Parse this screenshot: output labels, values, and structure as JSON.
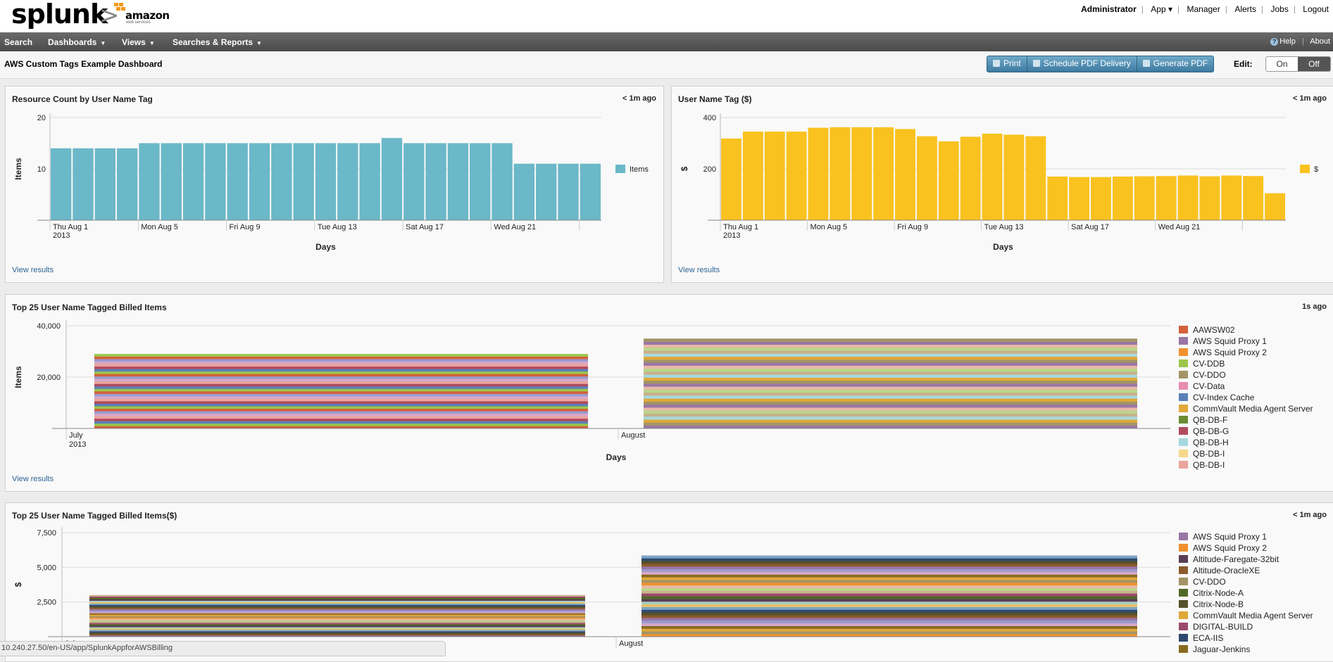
{
  "header": {
    "logo_text": "splunk",
    "partner_logo": "amazon web services",
    "user_nav": [
      "Administrator",
      "App ▾",
      "Manager",
      "Alerts",
      "Jobs",
      "Logout"
    ]
  },
  "nav": {
    "items": [
      {
        "label": "Search",
        "dropdown": false
      },
      {
        "label": "Dashboards",
        "dropdown": true
      },
      {
        "label": "Views",
        "dropdown": true
      },
      {
        "label": "Searches & Reports",
        "dropdown": true
      }
    ],
    "help_label": "Help",
    "about_label": "About"
  },
  "dashboard": {
    "title": "AWS Custom Tags Example Dashboard",
    "buttons": {
      "print": "Print",
      "schedule": "Schedule PDF Delivery",
      "generate": "Generate PDF"
    },
    "edit_label": "Edit:",
    "edit_on": "On",
    "edit_off": "Off"
  },
  "panels": {
    "p1": {
      "title": "Resource Count by User Name Tag",
      "time": "< 1m ago",
      "view": "View results"
    },
    "p2": {
      "title": "User Name Tag ($)",
      "time": "< 1m ago",
      "view": "View results"
    },
    "p3": {
      "title": "Top 25 User Name Tagged Billed Items",
      "time": "1s ago",
      "view": "View results"
    },
    "p4": {
      "title": "Top 25 User Name Tagged Billed Items($)",
      "time": "< 1m ago"
    }
  },
  "status_url": "10.240.27.50/en-US/app/SplunkAppforAWSBilling",
  "colors": {
    "teal": "#6ab8c8",
    "yellow": "#f9c21f",
    "link": "#2a6496"
  },
  "chart_data": [
    {
      "id": "c1",
      "type": "bar",
      "xlabel": "Days",
      "ylabel": "Items",
      "ylim": [
        0,
        20
      ],
      "yticks": [
        10,
        20
      ],
      "x_tick_labels": [
        "Thu Aug 1",
        "Mon Aug 5",
        "Fri Aug 9",
        "Tue Aug 13",
        "Sat Aug 17",
        "Wed Aug 21"
      ],
      "x_year_label": "2013",
      "legend": [
        "Items"
      ],
      "color": "#6ab8c8",
      "legend_placement": "right",
      "categories": [
        "Aug 1",
        "Aug 2",
        "Aug 3",
        "Aug 4",
        "Aug 5",
        "Aug 6",
        "Aug 7",
        "Aug 8",
        "Aug 9",
        "Aug 10",
        "Aug 11",
        "Aug 12",
        "Aug 13",
        "Aug 14",
        "Aug 15",
        "Aug 16",
        "Aug 17",
        "Aug 18",
        "Aug 19",
        "Aug 20",
        "Aug 21",
        "Aug 22",
        "Aug 23",
        "Aug 24",
        "Aug 25"
      ],
      "values": [
        14,
        14,
        14,
        14,
        15,
        15,
        15,
        15,
        15,
        15,
        15,
        15,
        15,
        15,
        15,
        16,
        15,
        15,
        15,
        15,
        15,
        11,
        11,
        11,
        11
      ]
    },
    {
      "id": "c2",
      "type": "bar",
      "xlabel": "Days",
      "ylabel": "$",
      "ylim": [
        0,
        400
      ],
      "yticks": [
        200,
        400
      ],
      "x_tick_labels": [
        "Thu Aug 1",
        "Mon Aug 5",
        "Fri Aug 9",
        "Tue Aug 13",
        "Sat Aug 17",
        "Wed Aug 21"
      ],
      "x_year_label": "2013",
      "legend": [
        "$"
      ],
      "color": "#f9c21f",
      "legend_placement": "right",
      "categories": [
        "Aug 1",
        "Aug 2",
        "Aug 3",
        "Aug 4",
        "Aug 5",
        "Aug 6",
        "Aug 7",
        "Aug 8",
        "Aug 9",
        "Aug 10",
        "Aug 11",
        "Aug 12",
        "Aug 13",
        "Aug 14",
        "Aug 15",
        "Aug 16",
        "Aug 17",
        "Aug 18",
        "Aug 19",
        "Aug 20",
        "Aug 21",
        "Aug 22",
        "Aug 23",
        "Aug 24",
        "Aug 25",
        "Aug 26"
      ],
      "values": [
        318,
        345,
        345,
        345,
        360,
        362,
        362,
        362,
        355,
        327,
        307,
        325,
        337,
        333,
        327,
        170,
        168,
        168,
        170,
        171,
        172,
        174,
        171,
        174,
        172,
        105
      ]
    },
    {
      "id": "c3",
      "type": "bar",
      "stacked": true,
      "xlabel": "Days",
      "ylabel": "Items",
      "ylim": [
        0,
        40000
      ],
      "yticks": [
        20000,
        40000
      ],
      "ytick_labels": [
        "20,000",
        "40,000"
      ],
      "categories": [
        "July 2013",
        "August"
      ],
      "x_tick_labels": [
        "July",
        "August"
      ],
      "x_year_label": "2013",
      "totals": [
        29000,
        35000
      ],
      "legend_placement": "right",
      "legend": [
        {
          "name": "AAWSW02",
          "color": "#d4603a"
        },
        {
          "name": "AWS Squid Proxy 1",
          "color": "#9a76a4"
        },
        {
          "name": "AWS Squid Proxy 2",
          "color": "#f0912e"
        },
        {
          "name": "CV-DDB",
          "color": "#9bc64a"
        },
        {
          "name": "CV-DDO",
          "color": "#a39466"
        },
        {
          "name": "CV-Data",
          "color": "#e88cb0"
        },
        {
          "name": "CV-Index Cache",
          "color": "#5b80b8"
        },
        {
          "name": "CommVault Media Agent Server",
          "color": "#e0a93a"
        },
        {
          "name": "QB-DB-F",
          "color": "#6b8c32"
        },
        {
          "name": "QB-DB-G",
          "color": "#b04a5e"
        },
        {
          "name": "QB-DB-H",
          "color": "#a6d8e0"
        },
        {
          "name": "QB-DB-I",
          "color": "#f6d88a"
        },
        {
          "name": "QB-DB-I",
          "color": "#eaa49c"
        }
      ]
    },
    {
      "id": "c4",
      "type": "bar",
      "stacked": true,
      "xlabel": "",
      "ylabel": "$",
      "ylim": [
        0,
        7500
      ],
      "yticks": [
        2500,
        5000,
        7500
      ],
      "ytick_labels": [
        "2,500",
        "5,000",
        "7,500"
      ],
      "categories": [
        "July",
        "August"
      ],
      "x_tick_labels": [
        "July",
        "August"
      ],
      "totals": [
        3000,
        5850
      ],
      "legend_placement": "right",
      "legend": [
        {
          "name": "AWS Squid Proxy 1",
          "color": "#9a76a4"
        },
        {
          "name": "AWS Squid Proxy 2",
          "color": "#f0912e"
        },
        {
          "name": "Altitude-Faregate-32bit",
          "color": "#5a3d56"
        },
        {
          "name": "Altitude-OracleXE",
          "color": "#8c5a2c"
        },
        {
          "name": "CV-DDO",
          "color": "#a39466"
        },
        {
          "name": "Citrix-Node-A",
          "color": "#4f6a26"
        },
        {
          "name": "Citrix-Node-B",
          "color": "#55502a"
        },
        {
          "name": "CommVault Media Agent Server",
          "color": "#e0a93a"
        },
        {
          "name": "DIGITAL-BUILD",
          "color": "#9a4a6a"
        },
        {
          "name": "ECA-IIS",
          "color": "#2e4a6e"
        },
        {
          "name": "Jaguar-Jenkins",
          "color": "#8a6a20"
        }
      ]
    }
  ]
}
